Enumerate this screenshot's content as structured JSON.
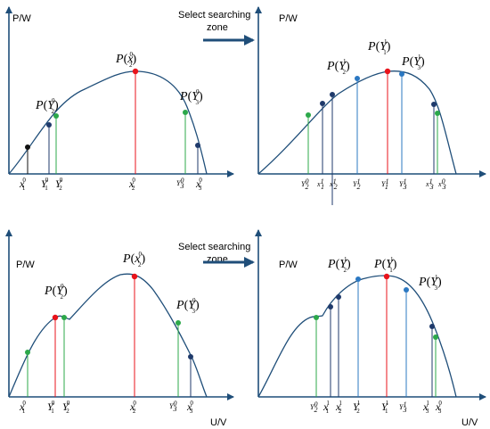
{
  "axes": {
    "y_label": "P/W",
    "x_label": "U/V"
  },
  "arrow_text": {
    "line1": "Select searching",
    "line2": "zone"
  },
  "colors": {
    "curve": "#1f4e79",
    "red": "#e8131b",
    "green": "#2ca84a",
    "blue": "#2b78c2",
    "navy": "#1f3a6b",
    "black": "#111111"
  },
  "panels": {
    "tl": {
      "labels": {
        "P": "P",
        "x2": "x",
        "Y2": "Y",
        "Y3": "Y",
        "sup0": "0",
        "sub2": "2",
        "sub3": "3",
        "sub1": "1"
      }
    }
  }
}
